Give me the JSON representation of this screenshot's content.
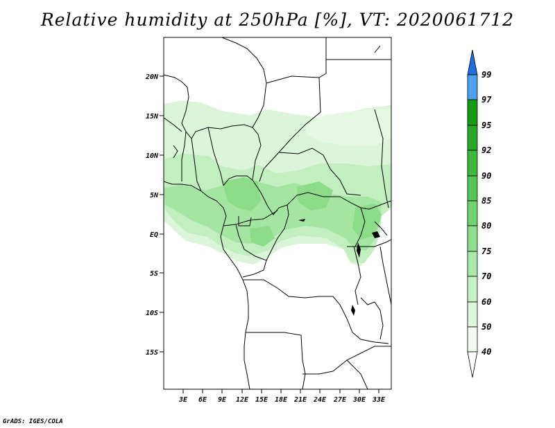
{
  "title": "Relative humidity at 250hPa [%], VT: 2020061712",
  "credit": "GrADS: IGES/COLA",
  "map": {
    "lat_ticks": [
      "20N",
      "15N",
      "10N",
      "5N",
      "EQ",
      "5S",
      "10S",
      "15S"
    ],
    "lon_ticks": [
      "3E",
      "6E",
      "9E",
      "12E",
      "15E",
      "18E",
      "21E",
      "24E",
      "27E",
      "30E",
      "33E"
    ]
  },
  "colorbar": {
    "labels": [
      "99",
      "97",
      "95",
      "92",
      "90",
      "85",
      "80",
      "75",
      "70",
      "60",
      "50",
      "40"
    ],
    "colors": {
      "40": "#f0fdf0",
      "50": "#dcf8dc",
      "60": "#c4f2c4",
      "70": "#aaeaa9",
      "75": "#8ee08c",
      "80": "#6fd46d",
      "85": "#54c752",
      "90": "#3cb83a",
      "92": "#28a826",
      "95": "#159a14",
      "97": "#4d9ff0",
      "99": "#1f6fe0"
    }
  }
}
